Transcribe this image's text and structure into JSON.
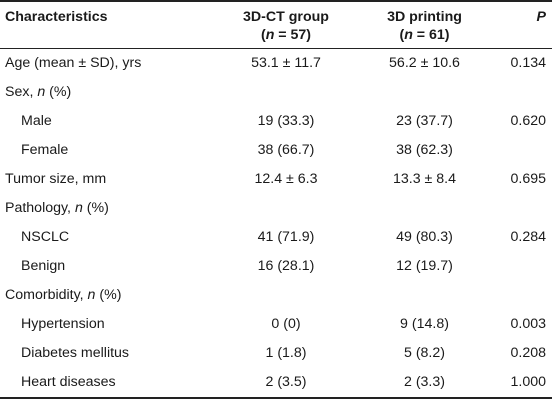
{
  "header": {
    "characteristics": "Characteristics",
    "ct_group": "3D-CT group",
    "ct_n_var": "n",
    "ct_n_val": " = 57)",
    "ct_n_open": "(",
    "printing_group": "3D printing",
    "printing_n_open": "(",
    "printing_n_var": "n",
    "printing_n_val": " = 61)",
    "p": "P"
  },
  "rows": [
    {
      "label": "Age (mean ± SD), yrs",
      "ct": "53.1 ± 11.7",
      "printing": "56.2 ± 10.6",
      "p": "0.134"
    },
    {
      "label_pre": "Sex, ",
      "label_var": "n",
      "label_post": " (%)",
      "ct": "",
      "printing": "",
      "p": ""
    },
    {
      "label": "Male",
      "ct": "19 (33.3)",
      "printing": "23 (37.7)",
      "p": "0.620"
    },
    {
      "label": "Female",
      "ct": "38 (66.7)",
      "printing": "38 (62.3)",
      "p": ""
    },
    {
      "label": "Tumor size, mm",
      "ct": "12.4 ± 6.3",
      "printing": "13.3 ± 8.4",
      "p": "0.695"
    },
    {
      "label_pre": "Pathology, ",
      "label_var": "n",
      "label_post": " (%)",
      "ct": "",
      "printing": "",
      "p": ""
    },
    {
      "label": "NSCLC",
      "ct": "41 (71.9)",
      "printing": "49 (80.3)",
      "p": "0.284"
    },
    {
      "label": "Benign",
      "ct": "16 (28.1)",
      "printing": "12 (19.7)",
      "p": ""
    },
    {
      "label_pre": "Comorbidity, ",
      "label_var": "n",
      "label_post": " (%)",
      "ct": "",
      "printing": "",
      "p": ""
    },
    {
      "label": "Hypertension",
      "ct": "0 (0)",
      "printing": "9 (14.8)",
      "p": "0.003"
    },
    {
      "label": "Diabetes mellitus",
      "ct": "1 (1.8)",
      "printing": "5 (8.2)",
      "p": "0.208"
    },
    {
      "label": "Heart diseases",
      "ct": "2 (3.5)",
      "printing": "2 (3.3)",
      "p": "1.000"
    }
  ]
}
